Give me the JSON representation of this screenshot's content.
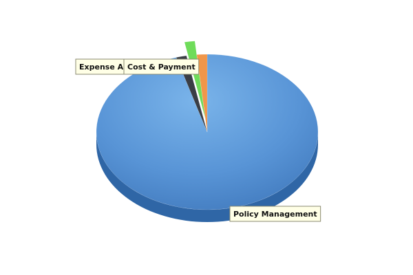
{
  "chart_data": {
    "type": "pie",
    "style": "3d-exploded",
    "slices": [
      {
        "label": "Policy Management",
        "value": 95.5,
        "color": "#4f8fd4",
        "side_color": "#2f66a6"
      },
      {
        "label": "Expense Ap",
        "value": 1.5,
        "color": "#3a3e45",
        "side_color": "#202328",
        "exploded": false
      },
      {
        "label": "",
        "value": 1.5,
        "color": "#6fdc5a",
        "side_color": "#3fa83a",
        "exploded": true
      },
      {
        "label": "Cost & Payment",
        "value": 1.5,
        "color": "#f0964a",
        "side_color": "#c46a22",
        "exploded": false
      }
    ],
    "legend": "none"
  }
}
